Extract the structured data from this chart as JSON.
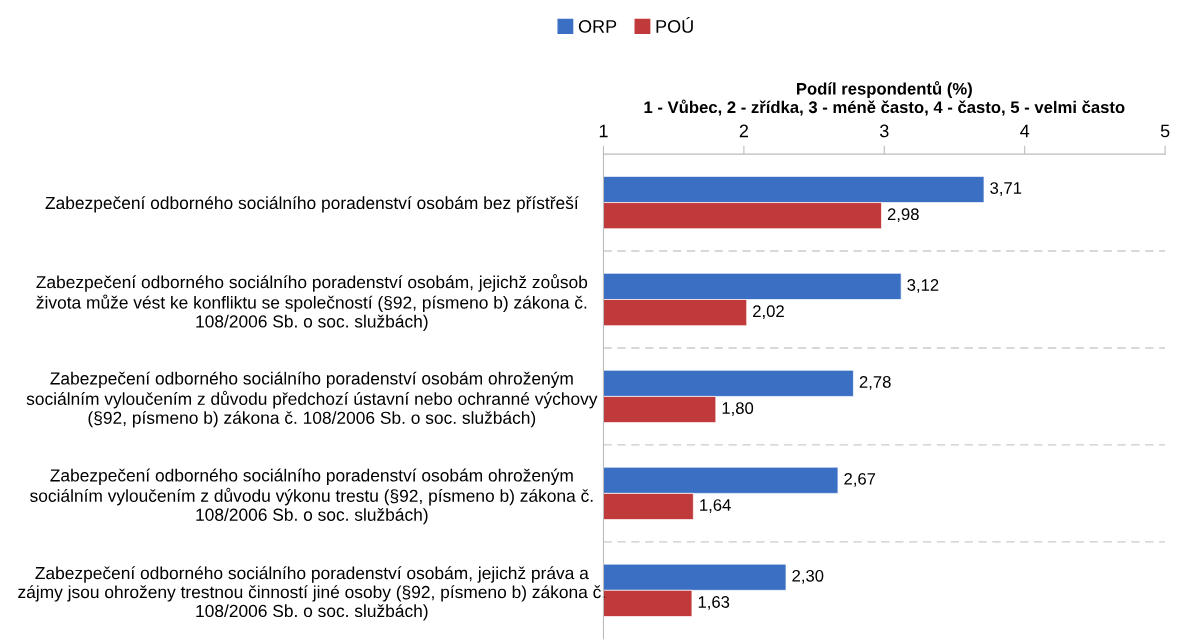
{
  "chart_data": {
    "type": "bar",
    "orientation": "horizontal",
    "xlabel": "Podíl respondentů (%)\n1 - Vůbec, 2 - zřídka, 3 - méně často, 4 - často, 5 - velmi často",
    "categories": [
      "Zabezpečení odborného sociálního poradenství osobám bez přístřeší",
      "Zabezpečení odborného sociálního poradenství osobám, jejichž zoůsob\nživota může vést ke konfliktu se společností (§92, písmeno b) zákona č.\n108/2006 Sb. o soc. službách)",
      "Zabezpečení odborného sociálního poradenství osobám ohroženým\nsociálním vyloučením z důvodu předchozí ústavní nebo ochranné výchovy\n(§92, písmeno b) zákona č. 108/2006 Sb. o soc. službách)",
      "Zabezpečení odborného sociálního poradenství osobám ohroženým\nsociálním vyloučením z důvodu výkonu trestu (§92, písmeno b) zákona č.\n108/2006 Sb. o soc. službách)",
      "Zabezpečení odborného sociálního poradenství osobám, jejichž práva a\nzájmy jsou ohroženy trestnou činností jiné osoby (§92, písmeno b) zákona č.\n108/2006 Sb. o soc. službách)"
    ],
    "series": [
      {
        "name": "ORP",
        "color": "#3a6fc4",
        "values": [
          3.71,
          3.12,
          2.78,
          2.67,
          2.3
        ],
        "value_labels": [
          "3,71",
          "3,12",
          "2,78",
          "2,67",
          "2,30"
        ]
      },
      {
        "name": "POÚ",
        "color": "#c0393b",
        "values": [
          2.98,
          2.02,
          1.8,
          1.64,
          1.63
        ],
        "value_labels": [
          "2,98",
          "2,02",
          "1,80",
          "1,64",
          "1,63"
        ]
      }
    ],
    "xlim": [
      1,
      5
    ],
    "xticks": [
      1,
      2,
      3,
      4,
      5
    ],
    "grid": "y",
    "legend": "top"
  }
}
